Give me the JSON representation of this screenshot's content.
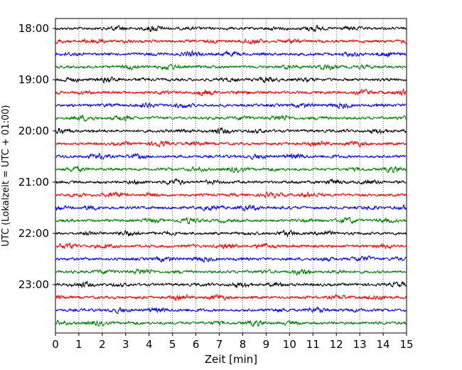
{
  "chart_data": {
    "type": "line",
    "title": "",
    "xlabel": "Zeit  [min]",
    "ylabel": "UTC (Lokalzeit = UTC + 01:00)",
    "xlim": [
      0,
      15
    ],
    "x_ticks": [
      0,
      1,
      2,
      3,
      4,
      5,
      6,
      7,
      8,
      9,
      10,
      11,
      12,
      13,
      14,
      15
    ],
    "x_tick_labels": [
      "0",
      "1",
      "2",
      "3",
      "4",
      "5",
      "6",
      "7",
      "8",
      "9",
      "10",
      "11",
      "12",
      "13",
      "14",
      "15"
    ],
    "y_tick_labels": [
      "18:00",
      "19:00",
      "20:00",
      "21:00",
      "22:00",
      "23:00"
    ],
    "trace_interval_min": 15,
    "trace_count": 24,
    "trace_colors": [
      "#000000",
      "#ff0000",
      "#0000ff",
      "#008000"
    ],
    "grid": "vertical-dotted",
    "legend": "none"
  }
}
